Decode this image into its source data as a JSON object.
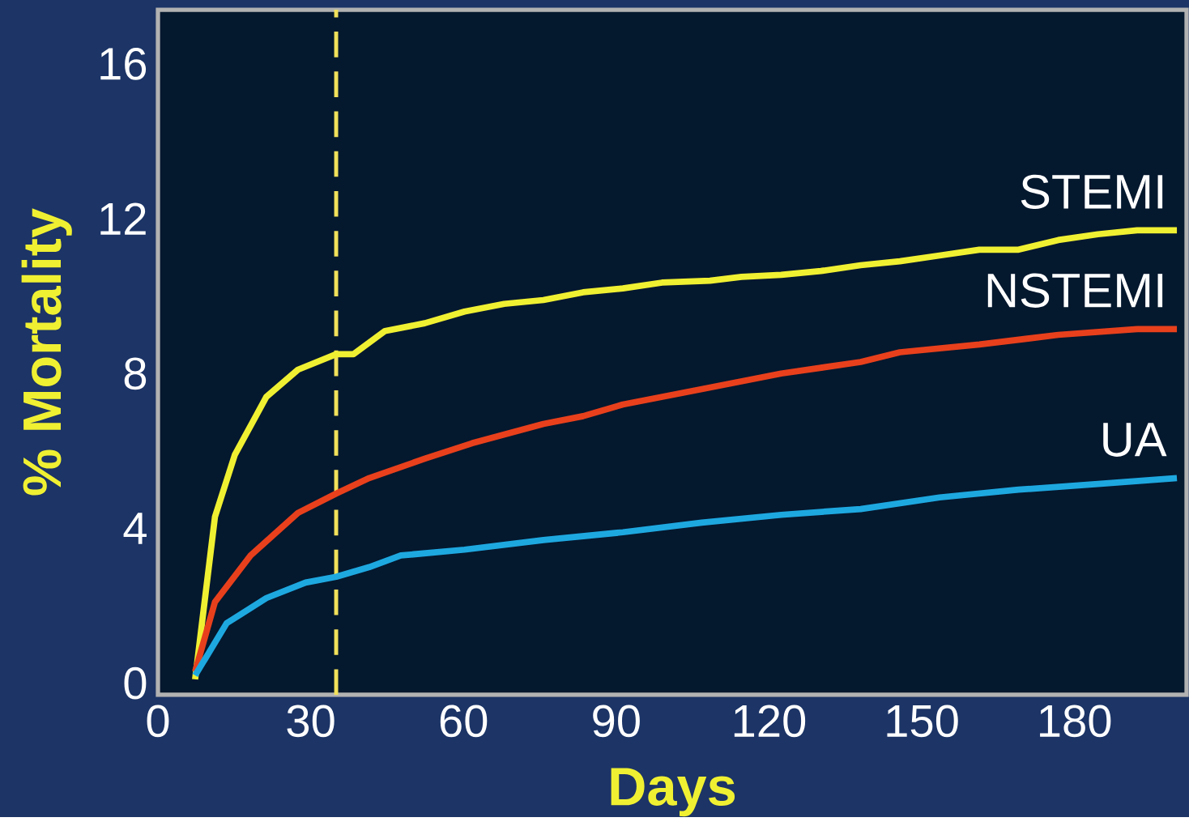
{
  "chart_data": {
    "type": "line",
    "xlabel": "Days",
    "ylabel": "% Mortality",
    "xlim": [
      0,
      202
    ],
    "ylim": [
      -0.3,
      17.4
    ],
    "xticks": [
      0,
      30,
      60,
      90,
      120,
      150,
      180
    ],
    "yticks": [
      0,
      4,
      8,
      12,
      16
    ],
    "marker": "none",
    "line_style": "solid",
    "ref_lines": [
      {
        "axis": "x",
        "value": 35,
        "color": "#f2e15a",
        "line_style": "dashed"
      }
    ],
    "series": [
      {
        "name": "STEMI",
        "color": "#f0f032",
        "x": [
          7.3,
          11.2,
          15.1,
          21.3,
          27.5,
          35,
          38.4,
          44.6,
          52.4,
          60.2,
          68,
          75.7,
          83.5,
          91.3,
          99,
          108.4,
          114.6,
          122.4,
          130.2,
          138,
          145.7,
          153.5,
          161.3,
          169,
          176.8,
          184.6,
          192.3,
          200.1
        ],
        "values": [
          0.1,
          4.3,
          5.9,
          7.4,
          8.1,
          8.5,
          8.5,
          9.1,
          9.3,
          9.6,
          9.8,
          9.9,
          10.1,
          10.2,
          10.35,
          10.4,
          10.5,
          10.55,
          10.65,
          10.8,
          10.9,
          11.05,
          11.2,
          11.2,
          11.45,
          11.6,
          11.7,
          11.7
        ]
      },
      {
        "name": "NSTEMI",
        "color": "#e8401c",
        "x": [
          7.3,
          11.2,
          18.2,
          27.5,
          35,
          41.5,
          52.4,
          61.7,
          75.7,
          83.5,
          91.3,
          106.8,
          122.4,
          138,
          145.7,
          161.3,
          176.8,
          192.3,
          200.1
        ],
        "values": [
          0.3,
          2.1,
          3.3,
          4.4,
          4.9,
          5.3,
          5.8,
          6.2,
          6.7,
          6.9,
          7.2,
          7.6,
          8.0,
          8.3,
          8.55,
          8.75,
          9.0,
          9.15,
          9.15
        ]
      },
      {
        "name": "UA",
        "color": "#1ea8e0",
        "x": [
          7.3,
          13.5,
          21.3,
          29,
          35,
          41.5,
          47.7,
          60.2,
          75.7,
          91.3,
          106.8,
          122.4,
          138,
          153.5,
          169,
          184.6,
          200.1
        ],
        "values": [
          0.2,
          1.55,
          2.2,
          2.6,
          2.75,
          3.0,
          3.3,
          3.45,
          3.7,
          3.9,
          4.15,
          4.35,
          4.5,
          4.8,
          5.0,
          5.15,
          5.3
        ]
      }
    ]
  }
}
